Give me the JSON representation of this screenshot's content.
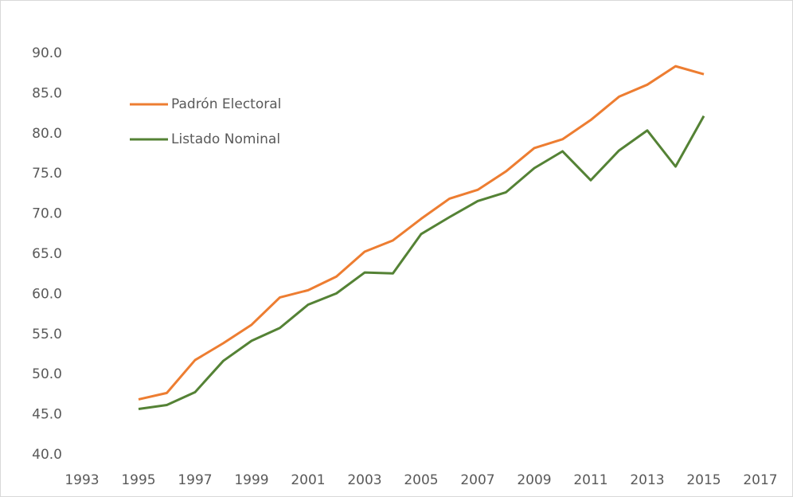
{
  "chart_data": {
    "type": "line",
    "x": [
      1995,
      1996,
      1997,
      1998,
      1999,
      2000,
      2001,
      2002,
      2003,
      2004,
      2005,
      2006,
      2007,
      2008,
      2009,
      2010,
      2011,
      2012,
      2013,
      2014,
      2015
    ],
    "series": [
      {
        "name": "Padrón Electoral",
        "color": "#ed7d31",
        "values": [
          46.9,
          47.7,
          51.8,
          53.9,
          56.2,
          59.6,
          60.5,
          62.2,
          65.3,
          66.7,
          69.4,
          71.9,
          73.0,
          75.3,
          78.2,
          79.3,
          81.7,
          84.6,
          86.1,
          88.4,
          87.4
        ]
      },
      {
        "name": "Listado Nominal",
        "color": "#548235",
        "values": [
          45.7,
          46.2,
          47.8,
          51.7,
          54.2,
          55.8,
          58.7,
          60.1,
          62.7,
          62.6,
          67.5,
          69.6,
          71.6,
          72.7,
          75.7,
          77.8,
          74.2,
          77.9,
          80.4,
          75.9,
          82.2
        ]
      }
    ],
    "xlim": [
      1993,
      2017
    ],
    "xticks": [
      1993,
      1995,
      1997,
      1999,
      2001,
      2003,
      2005,
      2007,
      2009,
      2011,
      2013,
      2015,
      2017
    ],
    "ylim": [
      40,
      90
    ],
    "yticks": [
      {
        "value": 40,
        "label": "40.0"
      },
      {
        "value": 45,
        "label": "45.0"
      },
      {
        "value": 50,
        "label": "50.0"
      },
      {
        "value": 55,
        "label": "55.0"
      },
      {
        "value": 60,
        "label": "60.0"
      },
      {
        "value": 65,
        "label": "65.0"
      },
      {
        "value": 70,
        "label": "70.0"
      },
      {
        "value": 75,
        "label": "75.0"
      },
      {
        "value": 80,
        "label": "80.0"
      },
      {
        "value": 85,
        "label": "85.0"
      },
      {
        "value": 90,
        "label": "90.0"
      }
    ],
    "legend": "upper-left"
  }
}
